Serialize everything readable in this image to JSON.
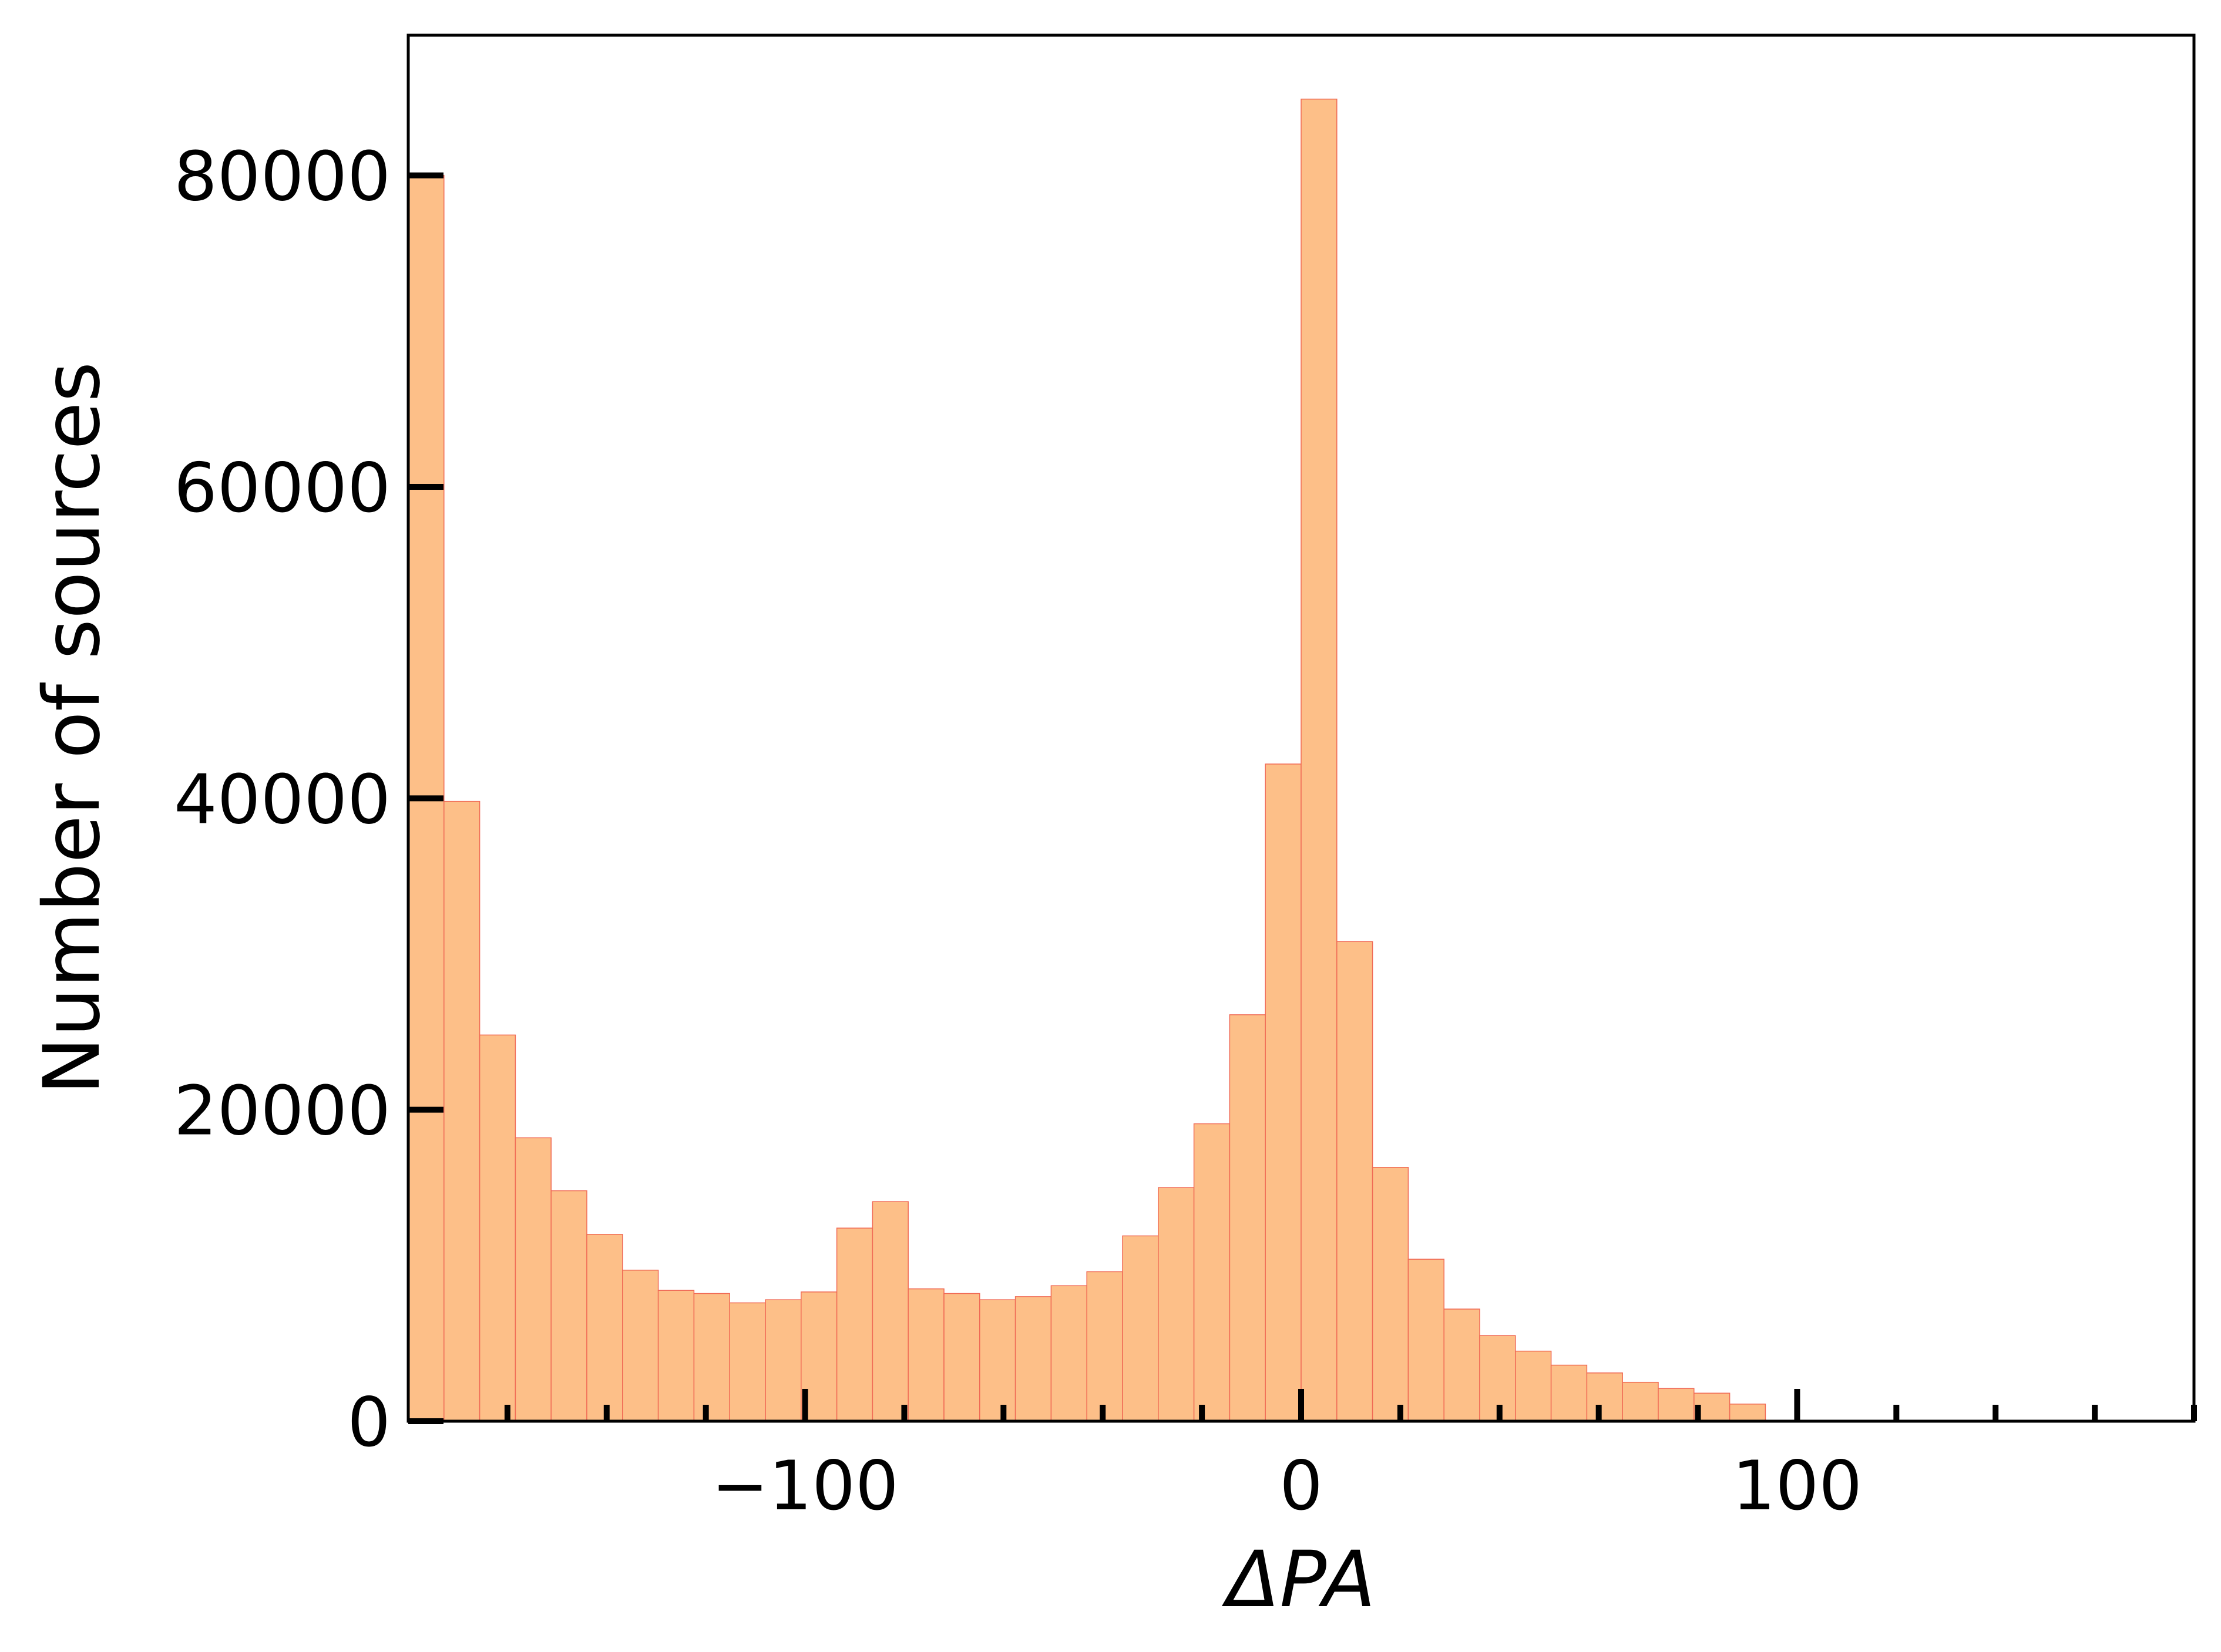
{
  "chart_data": {
    "type": "bar",
    "title": "",
    "xlabel": "ΔPA",
    "ylabel": "Number of sources",
    "xlim": [
      -180,
      180
    ],
    "ylim": [
      0,
      89000
    ],
    "bin_width": 7.2,
    "bin_start": -180,
    "counts": [
      80000,
      39800,
      24800,
      18200,
      14800,
      12000,
      9700,
      8400,
      8200,
      7600,
      7800,
      8300,
      12400,
      14100,
      8500,
      8200,
      7800,
      8000,
      8700,
      9600,
      11900,
      15000,
      19100,
      26100,
      42200,
      84900,
      30800,
      16300,
      10400,
      7200,
      5500,
      4500,
      3600,
      3100,
      2500,
      2100,
      1800,
      1100
    ],
    "x_ticks": [
      {
        "value": -100,
        "label": "−100"
      },
      {
        "value": 0,
        "label": "0"
      },
      {
        "value": 100,
        "label": "100"
      }
    ],
    "x_minor_ticks": [
      -160,
      -140,
      -120,
      -80,
      -60,
      -40,
      -20,
      20,
      40,
      60,
      80,
      120,
      140,
      160,
      180
    ],
    "y_ticks": [
      {
        "value": 0,
        "label": "0"
      },
      {
        "value": 20000,
        "label": "20000"
      },
      {
        "value": 40000,
        "label": "40000"
      },
      {
        "value": 60000,
        "label": "60000"
      },
      {
        "value": 80000,
        "label": "80000"
      }
    ],
    "bar_fill": "#fdbf88",
    "bar_edge": "#f06a55",
    "grid": false,
    "legend": "none"
  }
}
